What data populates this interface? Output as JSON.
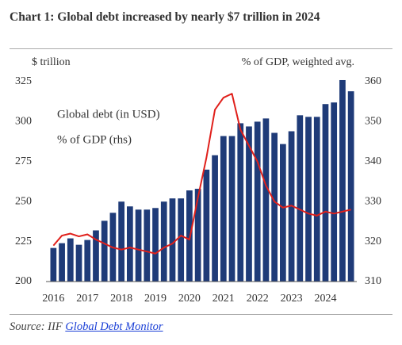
{
  "chart_data": {
    "type": "bar",
    "title": "Chart 1: Global debt increased by nearly $7 trillion in 2024",
    "y_label": "$ trillion",
    "y2_label": "% of GDP, weighted avg.",
    "source_prefix": "Source: IIF",
    "source_link": "Global Debt Monitor",
    "categories": [
      "2016",
      null,
      null,
      null,
      "2017",
      null,
      null,
      null,
      "2018",
      null,
      null,
      null,
      "2019",
      null,
      null,
      null,
      "2020",
      null,
      null,
      null,
      "2021",
      null,
      null,
      null,
      "2022",
      null,
      null,
      null,
      "2023",
      null,
      null,
      null,
      "2024",
      null,
      null,
      null
    ],
    "series": [
      {
        "name": "Global debt (in USD)",
        "type": "bar",
        "color": "#1f3b78",
        "values": [
          221,
          224,
          227,
          223,
          226,
          232,
          238,
          243,
          250,
          247,
          245,
          245,
          246,
          250,
          252,
          252,
          257,
          258,
          270,
          279,
          291,
          291,
          299,
          297,
          300,
          302,
          293,
          286,
          294,
          304,
          303,
          303,
          311,
          312,
          326,
          319
        ]
      },
      {
        "name": "% of GDP (rhs)",
        "type": "line",
        "axis": "y2",
        "color": "#e0201b",
        "values": [
          319,
          321.5,
          322,
          321.3,
          321.8,
          320.5,
          319.5,
          318.5,
          318,
          318.5,
          318,
          317.5,
          317,
          318.5,
          319.5,
          321.5,
          320.5,
          331,
          341,
          353,
          356,
          357,
          348,
          344,
          340,
          334,
          330,
          328.5,
          329,
          328,
          327,
          326.5,
          327.5,
          327,
          327.5,
          328
        ]
      }
    ],
    "ylim": [
      200,
      325
    ],
    "yticks": [
      200,
      225,
      250,
      275,
      300,
      325
    ],
    "y2lim": [
      310,
      360
    ],
    "y2ticks": [
      310,
      320,
      330,
      340,
      350,
      360
    ],
    "grid": false
  }
}
